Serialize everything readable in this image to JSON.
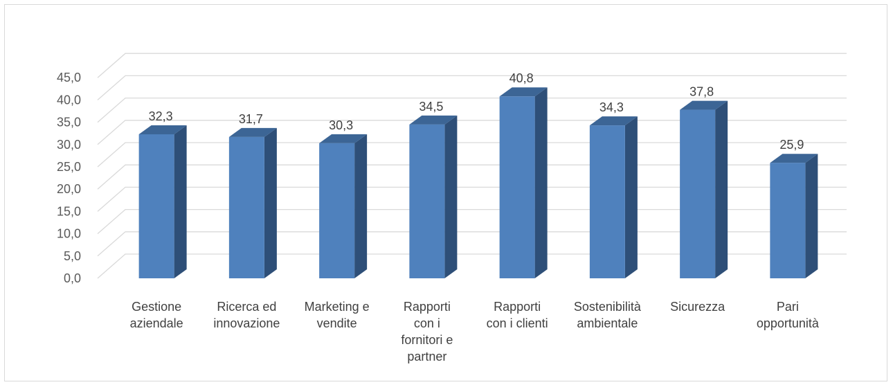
{
  "chart_data": {
    "type": "bar",
    "categories": [
      [
        "Gestione",
        "aziendale"
      ],
      [
        "Ricerca ed",
        "innovazione"
      ],
      [
        "Marketing e",
        "vendite"
      ],
      [
        "Rapporti",
        "con i",
        "fornitori e",
        "partner"
      ],
      [
        "Rapporti",
        "con i clienti"
      ],
      [
        "Sostenibilità",
        "ambientale"
      ],
      [
        "Sicurezza"
      ],
      [
        "Pari",
        "opportunità"
      ]
    ],
    "values": [
      32.3,
      31.7,
      30.3,
      34.5,
      40.8,
      34.3,
      37.8,
      25.9
    ],
    "value_labels": [
      "32,3",
      "31,7",
      "30,3",
      "34,5",
      "40,8",
      "34,3",
      "37,8",
      "25,9"
    ],
    "y_ticks": [
      "0,0",
      "5,0",
      "10,0",
      "15,0",
      "20,0",
      "25,0",
      "30,0",
      "35,0",
      "40,0",
      "45,0"
    ],
    "ylim": [
      0,
      45
    ],
    "grid": true,
    "style": "3d-column",
    "colors": {
      "front": "#4f81bd",
      "side": "#2e4f78",
      "top": "#3c6595",
      "grid": "#d9d9d9",
      "text": "#404040"
    }
  }
}
